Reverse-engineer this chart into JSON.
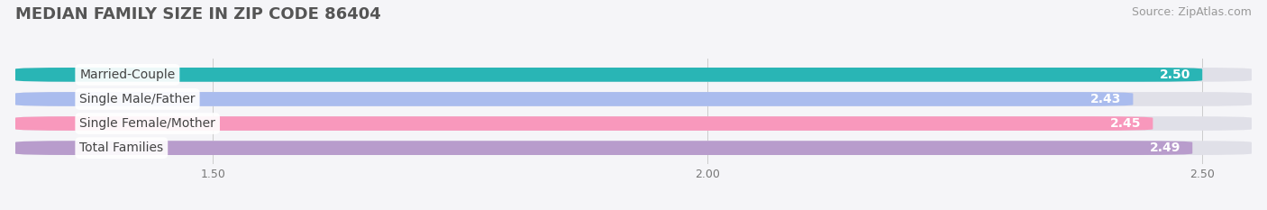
{
  "title": "MEDIAN FAMILY SIZE IN ZIP CODE 86404",
  "source": "Source: ZipAtlas.com",
  "categories": [
    "Married-Couple",
    "Single Male/Father",
    "Single Female/Mother",
    "Total Families"
  ],
  "values": [
    2.5,
    2.43,
    2.45,
    2.49
  ],
  "bar_colors": [
    "#29b5b5",
    "#aabcee",
    "#f898bc",
    "#b89ccc"
  ],
  "track_color": "#e0e0e8",
  "xlim_min": 1.3,
  "xlim_max": 2.55,
  "xticks": [
    1.5,
    2.0,
    2.5
  ],
  "background_color": "#f5f5f8",
  "bar_height": 0.58,
  "title_fontsize": 13,
  "source_fontsize": 9,
  "label_fontsize": 10,
  "value_fontsize": 10
}
